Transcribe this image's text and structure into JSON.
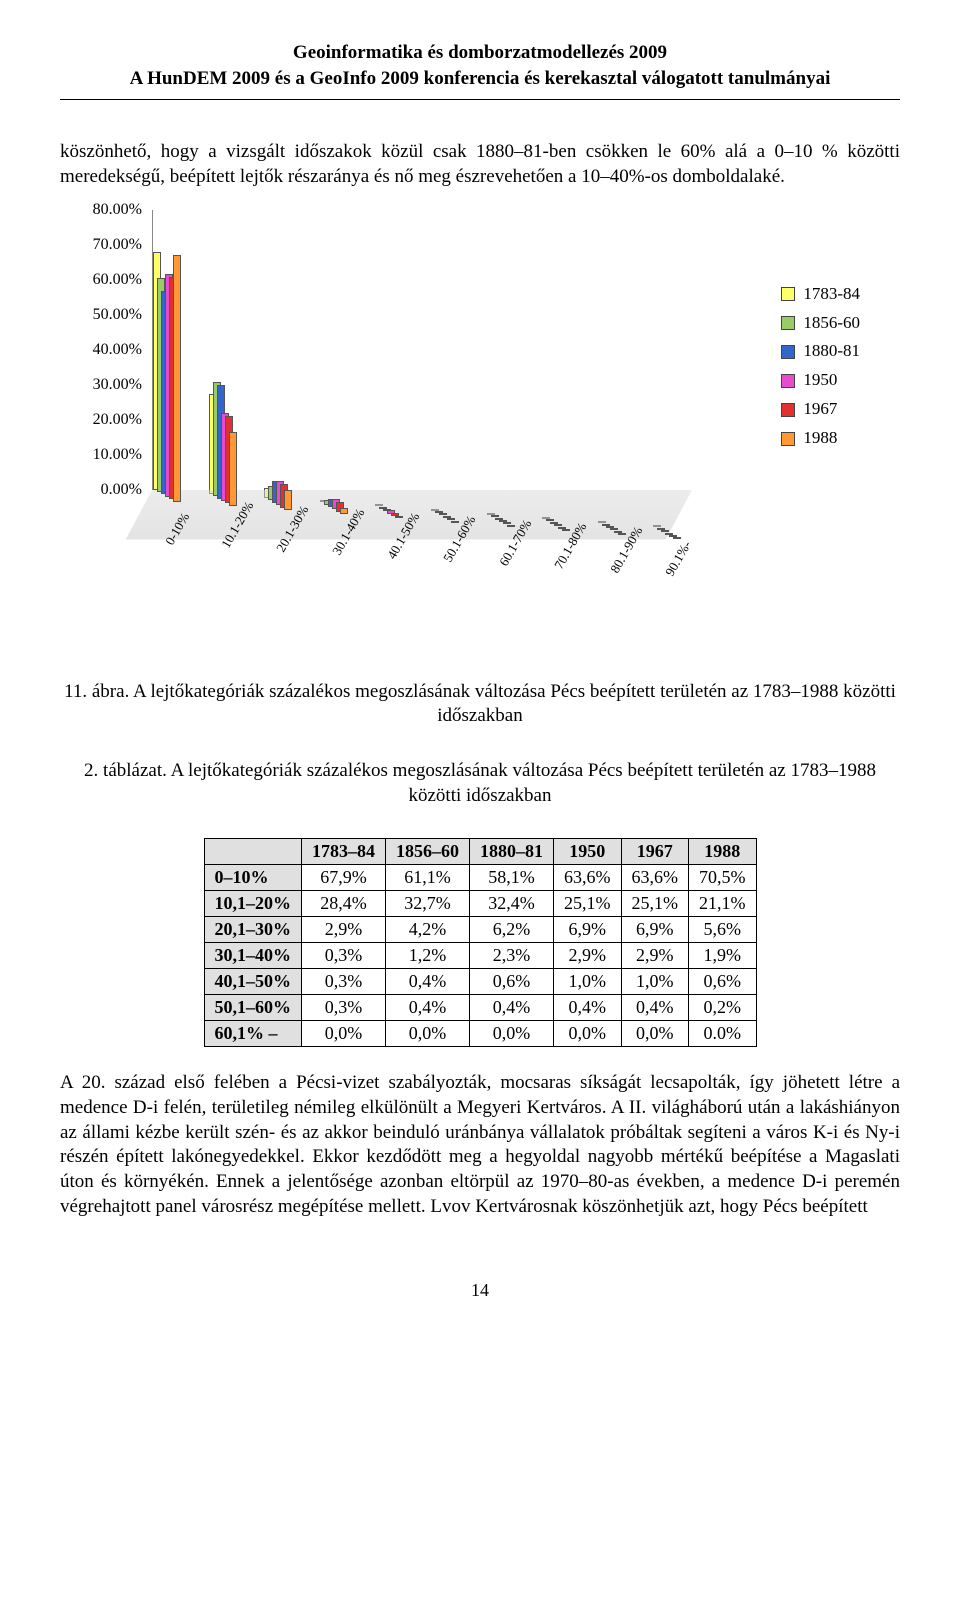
{
  "header": {
    "line1": "Geoinformatika és domborzatmodellezés 2009",
    "line2": "A HunDEM 2009 és a GeoInfo 2009 konferencia és kerekasztal válogatott tanulmányai"
  },
  "intro_para": "köszönhető, hogy a vizsgált időszakok közül csak 1880–81-ben csökken le 60% alá a 0–10 % közötti meredekségű, beépített lejtők részaránya és nő meg észrevehetően a 10–40%-os domboldalaké.",
  "chart": {
    "type": "3d-bar",
    "y_ticks": [
      "0.00%",
      "10.00%",
      "20.00%",
      "30.00%",
      "40.00%",
      "50.00%",
      "60.00%",
      "70.00%",
      "80.00%"
    ],
    "y_max": 80,
    "x_labels": [
      "0-10%",
      "10.1-20%",
      "20.1-30%",
      "30.1-40%",
      "40.1-50%",
      "50.1-60%",
      "60.1-70%",
      "70.1-80%",
      "80.1-90%",
      "90.1%-"
    ],
    "series": [
      {
        "name": "1783-84",
        "color": "#ffff66"
      },
      {
        "name": "1856-60",
        "color": "#99cc66"
      },
      {
        "name": "1880-81",
        "color": "#3366cc"
      },
      {
        "name": "1950",
        "color": "#e64ccf"
      },
      {
        "name": "1967",
        "color": "#e03030"
      },
      {
        "name": "1988",
        "color": "#ff9933"
      }
    ],
    "values": {
      "0-10%": [
        67.9,
        61.1,
        58.1,
        63.6,
        63.6,
        70.5
      ],
      "10.1-20%": [
        28.4,
        32.7,
        32.4,
        25.1,
        25.1,
        21.1
      ],
      "20.1-30%": [
        2.9,
        4.2,
        6.2,
        6.9,
        6.9,
        5.6
      ],
      "30.1-40%": [
        0.3,
        1.2,
        2.3,
        2.9,
        2.9,
        1.9
      ],
      "40.1-50%": [
        0.3,
        0.4,
        0.6,
        1.0,
        1.0,
        0.6
      ],
      "50.1-60%": [
        0.3,
        0.4,
        0.4,
        0.4,
        0.4,
        0.2
      ],
      "60.1-70%": [
        0.0,
        0.0,
        0.0,
        0.0,
        0.0,
        0.0
      ],
      "70.1-80%": [
        0.0,
        0.0,
        0.0,
        0.0,
        0.0,
        0.0
      ],
      "80.1-90%": [
        0.0,
        0.0,
        0.0,
        0.0,
        0.0,
        0.0
      ],
      "90.1%-": [
        0.0,
        0.0,
        0.0,
        0.0,
        0.0,
        0.0
      ]
    }
  },
  "fig_caption": "11. ábra. A lejtőkategóriák százalékos megoszlásának változása Pécs beépített területén az 1783–1988 közötti időszakban",
  "table_caption": "2. táblázat. A lejtőkategóriák százalékos megoszlásának változása Pécs beépített területén az 1783–1988 közötti időszakban",
  "table": {
    "columns": [
      "",
      "1783–84",
      "1856–60",
      "1880–81",
      "1950",
      "1967",
      "1988"
    ],
    "rows": [
      [
        "0–10%",
        "67,9%",
        "61,1%",
        "58,1%",
        "63,6%",
        "63,6%",
        "70,5%"
      ],
      [
        "10,1–20%",
        "28,4%",
        "32,7%",
        "32,4%",
        "25,1%",
        "25,1%",
        "21,1%"
      ],
      [
        "20,1–30%",
        "2,9%",
        "4,2%",
        "6,2%",
        "6,9%",
        "6,9%",
        "5,6%"
      ],
      [
        "30,1–40%",
        "0,3%",
        "1,2%",
        "2,3%",
        "2,9%",
        "2,9%",
        "1,9%"
      ],
      [
        "40,1–50%",
        "0,3%",
        "0,4%",
        "0,6%",
        "1,0%",
        "1,0%",
        "0,6%"
      ],
      [
        "50,1–60%",
        "0,3%",
        "0,4%",
        "0,4%",
        "0,4%",
        "0,4%",
        "0,2%"
      ],
      [
        "60,1% –",
        "0,0%",
        "0,0%",
        "0,0%",
        "0,0%",
        "0,0%",
        "0.0%"
      ]
    ]
  },
  "body_para": "A 20. század első felében a Pécsi-vizet szabályozták, mocsaras síkságát lecsapolták, így jöhetett létre a medence D-i felén, területileg némileg elkülönült a Megyeri Kertváros. A II. világháború után a lakáshiányon az állami kézbe került szén- és az akkor beinduló uránbánya vállalatok próbáltak segíteni a város K-i és Ny-i részén épített lakónegyedekkel. Ekkor kezdődött meg a hegyoldal nagyobb mértékű beépítése a Magaslati úton és környékén. Ennek a jelentősége azonban eltörpül az 1970–80-as években, a medence D-i peremén végrehajtott panel városrész megépítése mellett. Lvov Kertvárosnak köszönhetjük azt, hogy Pécs beépített",
  "page_number": "14"
}
